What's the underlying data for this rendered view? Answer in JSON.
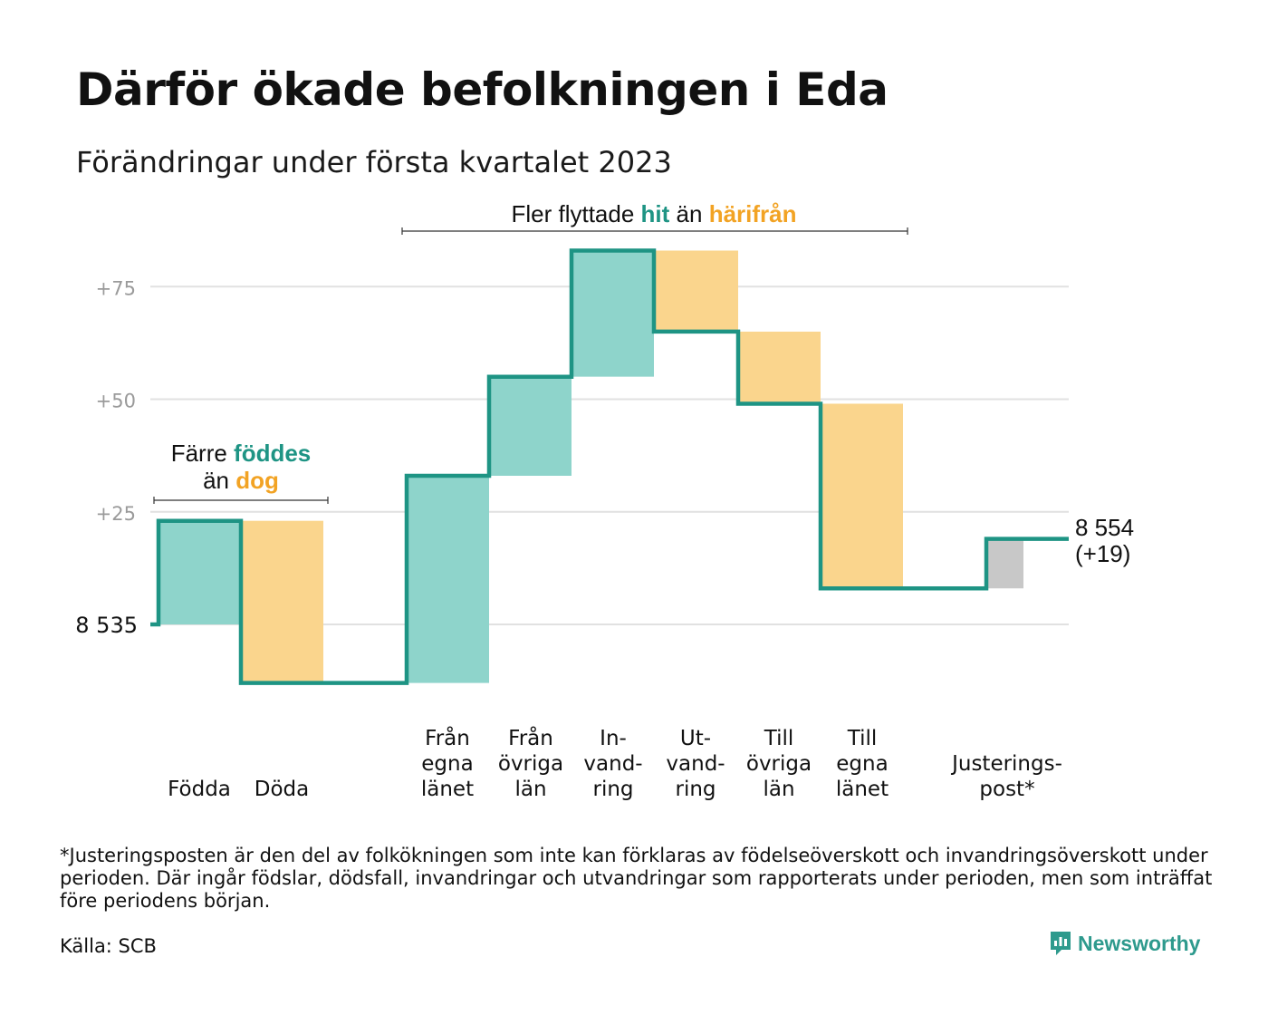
{
  "title": "Därför ökade befolkningen i Eda",
  "subtitle": "Förändringar under första kvartalet 2023",
  "colors": {
    "teal_fill": "#8ed4cb",
    "teal_line": "#1e9484",
    "orange_fill": "#fad58d",
    "orange_text": "#f2a324",
    "gray_fill": "#c8c8c8",
    "grid": "#e1e1e1",
    "tick_text": "#9a9a9a"
  },
  "annotations": {
    "births": {
      "prefix": "Färre ",
      "highlight1": "föddes",
      "middle": "än ",
      "highlight2": "dog"
    },
    "migration": {
      "prefix": "Fler flyttade ",
      "highlight1": "hit",
      "middle": " än ",
      "highlight2": "härifrån"
    }
  },
  "start_label": "8 535",
  "end_label": {
    "value": "8 554",
    "change": "(+19)"
  },
  "chart_data": {
    "type": "waterfall",
    "title": "Därför ökade befolkningen i Eda",
    "subtitle": "Förändringar under första kvartalet 2023",
    "base": 8535,
    "end": 8554,
    "total_change": 19,
    "y_ticks": [
      0,
      25,
      50,
      75
    ],
    "y_tick_labels": [
      "8 535",
      "+25",
      "+50",
      "+75"
    ],
    "ylim": [
      -15,
      82
    ],
    "grid": true,
    "steps": [
      {
        "label": [
          "Födda"
        ],
        "value": 23,
        "kind": "in"
      },
      {
        "label": [
          "Döda"
        ],
        "value": -36,
        "kind": "out"
      },
      {
        "label": [
          "Från",
          "egna",
          "länet"
        ],
        "value": 46,
        "kind": "in"
      },
      {
        "label": [
          "Från",
          "övriga",
          "län"
        ],
        "value": 22,
        "kind": "in"
      },
      {
        "label": [
          "In-",
          "vand-",
          "ring"
        ],
        "value": 28,
        "kind": "in"
      },
      {
        "label": [
          "Ut-",
          "vand-",
          "ring"
        ],
        "value": -18,
        "kind": "out"
      },
      {
        "label": [
          "Till",
          "övriga",
          "län"
        ],
        "value": -16,
        "kind": "out"
      },
      {
        "label": [
          "Till",
          "egna",
          "länet"
        ],
        "value": -41,
        "kind": "out"
      },
      {
        "label": [
          "Justerings-",
          "post*"
        ],
        "value": 11,
        "kind": "adjustment"
      }
    ]
  },
  "footnote": "*Justeringsposten är den del av folkökningen som inte kan förklaras av födelseöverskott och invandringsöverskott under perioden. Där ingår födslar, dödsfall, invandringar och utvandringar som rapporterats under perioden, men som inträffat före periodens början.",
  "source": "Källa: SCB",
  "brand": {
    "name": "Newsworthy",
    "icon": "newsworthy-logo-icon"
  }
}
